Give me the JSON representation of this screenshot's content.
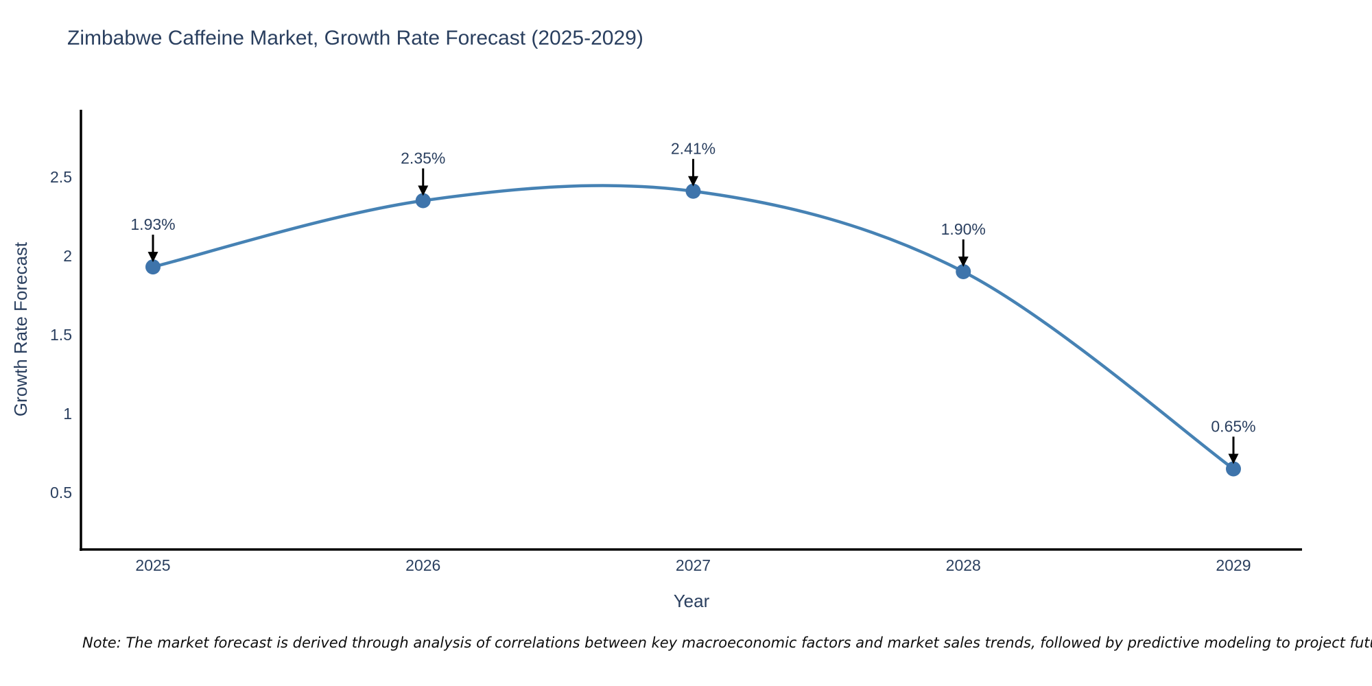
{
  "title": "Zimbabwe Caffeine Market, Growth Rate Forecast (2025-2029)",
  "footnote": "Note: The market forecast is derived through analysis of correlations between key macroeconomic factors and market sales trends, followed by predictive modeling to project future sales",
  "colors": {
    "line": "#4682b4",
    "marker": "#3e74ab",
    "axis": "#000000",
    "text": "#2a3f5f",
    "annotation_arrow": "#000000",
    "background": "#ffffff"
  },
  "chart_data": {
    "type": "line",
    "title": "Zimbabwe Caffeine Market, Growth Rate Forecast (2025-2029)",
    "xlabel": "Year",
    "ylabel": "Growth Rate Forecast",
    "x": [
      2025,
      2026,
      2027,
      2028,
      2029
    ],
    "values": [
      1.93,
      2.35,
      2.41,
      1.9,
      0.65
    ],
    "point_labels": [
      "1.93%",
      "2.35%",
      "2.41%",
      "1.90%",
      "0.65%"
    ],
    "xticks": [
      "2025",
      "2026",
      "2027",
      "2028",
      "2029"
    ],
    "yticks": [
      0.5,
      1,
      1.5,
      2,
      2.5
    ],
    "xlim": [
      2024.73,
      2029.25
    ],
    "ylim": [
      0.14,
      2.93
    ],
    "line_shape": "spline",
    "grid": false,
    "legend": false,
    "annotations": "value labels with downward arrows above each point"
  }
}
